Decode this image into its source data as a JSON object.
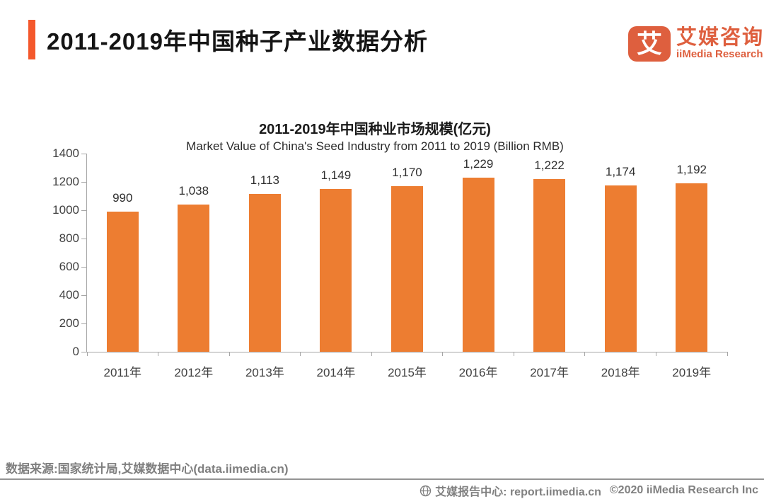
{
  "header": {
    "title": "2011-2019年中国种子产业数据分析",
    "logo": {
      "glyph": "艾",
      "brand_cn": "艾媒咨询",
      "brand_en": "iiMedia Research"
    }
  },
  "chart_data": {
    "type": "bar",
    "title": "2011-2019年中国种业市场规模(亿元)",
    "subtitle": "Market Value of China's Seed Industry from 2011 to 2019 (Billion RMB)",
    "categories": [
      "2011年",
      "2012年",
      "2013年",
      "2014年",
      "2015年",
      "2016年",
      "2017年",
      "2018年",
      "2019年"
    ],
    "values": [
      990,
      1038,
      1113,
      1149,
      1170,
      1229,
      1222,
      1174,
      1192
    ],
    "value_labels": [
      "990",
      "1,038",
      "1,113",
      "1,149",
      "1,170",
      "1,229",
      "1,222",
      "1,174",
      "1,192"
    ],
    "xlabel": "",
    "ylabel": "",
    "ylim": [
      0,
      1400
    ],
    "yticks": [
      0,
      200,
      400,
      600,
      800,
      1000,
      1200,
      1400
    ],
    "grid": false,
    "legend": null,
    "bar_color": "#ED7D31"
  },
  "footer": {
    "source": "数据来源:国家统计局,艾媒数据中心(data.iimedia.cn)",
    "report_center": "艾媒报告中心: report.iimedia.cn",
    "copyright": "©2020  iiMedia Research Inc",
    "globe_icon": "globe-with-meridians"
  },
  "colors": {
    "accent": "#F4582C",
    "brand": "#DE5F3E",
    "bar": "#ED7D31",
    "axis": "#A6A6A6",
    "footer_text": "#808080"
  }
}
